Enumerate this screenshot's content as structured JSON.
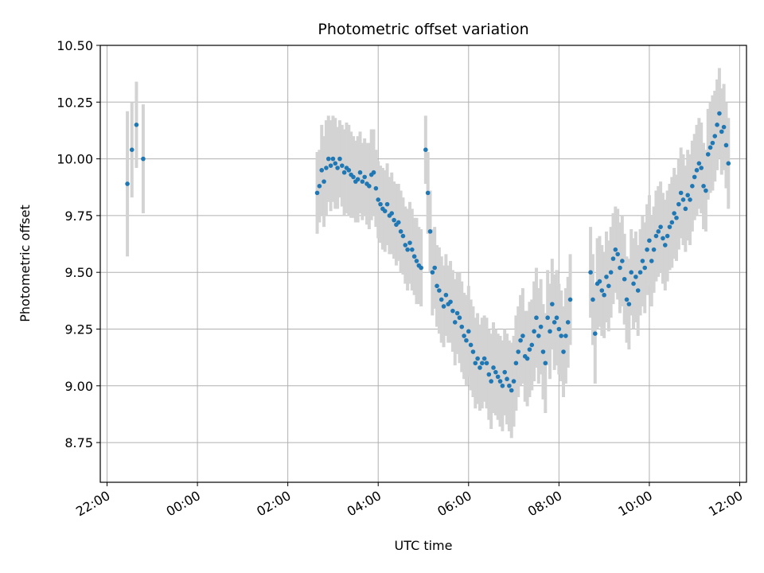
{
  "chart_data": {
    "type": "scatter",
    "title": "Photometric offset variation",
    "xlabel": "UTC time",
    "ylabel": "Photometric offset",
    "x_ticks": [
      "22:00",
      "00:00",
      "02:00",
      "04:00",
      "06:00",
      "08:00",
      "10:00",
      "12:00"
    ],
    "y_ticks": [
      "8.75",
      "9.00",
      "9.25",
      "9.50",
      "9.75",
      "10.00",
      "10.25",
      "10.50"
    ],
    "x_unit": "hours since 22:00 UTC",
    "xlim": [
      -0.15,
      14.15
    ],
    "ylim": [
      8.575,
      10.5
    ],
    "grid": true,
    "colors": {
      "points": "#1f77b4",
      "errorbars": "#d3d3d3",
      "grid": "#b0b0b0"
    },
    "series": [
      {
        "points": [
          {
            "x": 0.45,
            "y": 9.89,
            "e": 0.32
          },
          {
            "x": 0.55,
            "y": 10.04,
            "e": 0.21
          },
          {
            "x": 0.65,
            "y": 10.15,
            "e": 0.19
          },
          {
            "x": 0.8,
            "y": 10.0,
            "e": 0.24
          },
          {
            "x": 4.65,
            "y": 9.85,
            "e": 0.18
          },
          {
            "x": 4.7,
            "y": 9.88,
            "e": 0.16
          },
          {
            "x": 4.75,
            "y": 9.95,
            "e": 0.2
          },
          {
            "x": 4.8,
            "y": 9.9,
            "e": 0.2
          },
          {
            "x": 4.85,
            "y": 9.96,
            "e": 0.21
          },
          {
            "x": 4.9,
            "y": 10.0,
            "e": 0.19
          },
          {
            "x": 4.95,
            "y": 9.97,
            "e": 0.2
          },
          {
            "x": 5.0,
            "y": 10.0,
            "e": 0.19
          },
          {
            "x": 5.05,
            "y": 9.98,
            "e": 0.2
          },
          {
            "x": 5.1,
            "y": 9.96,
            "e": 0.18
          },
          {
            "x": 5.15,
            "y": 10.0,
            "e": 0.17
          },
          {
            "x": 5.2,
            "y": 9.97,
            "e": 0.18
          },
          {
            "x": 5.25,
            "y": 9.94,
            "e": 0.19
          },
          {
            "x": 5.3,
            "y": 9.96,
            "e": 0.2
          },
          {
            "x": 5.35,
            "y": 9.95,
            "e": 0.2
          },
          {
            "x": 5.4,
            "y": 9.93,
            "e": 0.19
          },
          {
            "x": 5.45,
            "y": 9.92,
            "e": 0.18
          },
          {
            "x": 5.5,
            "y": 9.9,
            "e": 0.18
          },
          {
            "x": 5.55,
            "y": 9.91,
            "e": 0.19
          },
          {
            "x": 5.6,
            "y": 9.94,
            "e": 0.18
          },
          {
            "x": 5.65,
            "y": 9.9,
            "e": 0.17
          },
          {
            "x": 5.7,
            "y": 9.92,
            "e": 0.17
          },
          {
            "x": 5.75,
            "y": 9.89,
            "e": 0.18
          },
          {
            "x": 5.8,
            "y": 9.88,
            "e": 0.19
          },
          {
            "x": 5.85,
            "y": 9.93,
            "e": 0.2
          },
          {
            "x": 5.9,
            "y": 9.94,
            "e": 0.19
          },
          {
            "x": 5.95,
            "y": 9.87,
            "e": 0.17
          },
          {
            "x": 6.0,
            "y": 9.82,
            "e": 0.17
          },
          {
            "x": 6.05,
            "y": 9.8,
            "e": 0.17
          },
          {
            "x": 6.1,
            "y": 9.78,
            "e": 0.18
          },
          {
            "x": 6.15,
            "y": 9.77,
            "e": 0.18
          },
          {
            "x": 6.2,
            "y": 9.8,
            "e": 0.18
          },
          {
            "x": 6.25,
            "y": 9.75,
            "e": 0.17
          },
          {
            "x": 6.3,
            "y": 9.76,
            "e": 0.18
          },
          {
            "x": 6.35,
            "y": 9.73,
            "e": 0.17
          },
          {
            "x": 6.4,
            "y": 9.71,
            "e": 0.18
          },
          {
            "x": 6.45,
            "y": 9.72,
            "e": 0.17
          },
          {
            "x": 6.5,
            "y": 9.68,
            "e": 0.18
          },
          {
            "x": 6.55,
            "y": 9.66,
            "e": 0.17
          },
          {
            "x": 6.6,
            "y": 9.62,
            "e": 0.17
          },
          {
            "x": 6.65,
            "y": 9.6,
            "e": 0.18
          },
          {
            "x": 6.7,
            "y": 9.63,
            "e": 0.18
          },
          {
            "x": 6.75,
            "y": 9.6,
            "e": 0.18
          },
          {
            "x": 6.8,
            "y": 9.57,
            "e": 0.17
          },
          {
            "x": 6.85,
            "y": 9.55,
            "e": 0.19
          },
          {
            "x": 6.9,
            "y": 9.53,
            "e": 0.17
          },
          {
            "x": 6.95,
            "y": 9.52,
            "e": 0.17
          },
          {
            "x": 7.05,
            "y": 10.04,
            "e": 0.15
          },
          {
            "x": 7.1,
            "y": 9.85,
            "e": 0.18
          },
          {
            "x": 7.15,
            "y": 9.68,
            "e": 0.18
          },
          {
            "x": 7.2,
            "y": 9.5,
            "e": 0.19
          },
          {
            "x": 7.25,
            "y": 9.52,
            "e": 0.18
          },
          {
            "x": 7.3,
            "y": 9.44,
            "e": 0.18
          },
          {
            "x": 7.35,
            "y": 9.42,
            "e": 0.19
          },
          {
            "x": 7.4,
            "y": 9.38,
            "e": 0.19
          },
          {
            "x": 7.45,
            "y": 9.35,
            "e": 0.18
          },
          {
            "x": 7.5,
            "y": 9.4,
            "e": 0.18
          },
          {
            "x": 7.55,
            "y": 9.36,
            "e": 0.17
          },
          {
            "x": 7.6,
            "y": 9.37,
            "e": 0.18
          },
          {
            "x": 7.65,
            "y": 9.33,
            "e": 0.18
          },
          {
            "x": 7.7,
            "y": 9.28,
            "e": 0.19
          },
          {
            "x": 7.75,
            "y": 9.32,
            "e": 0.18
          },
          {
            "x": 7.8,
            "y": 9.3,
            "e": 0.2
          },
          {
            "x": 7.85,
            "y": 9.26,
            "e": 0.2
          },
          {
            "x": 7.9,
            "y": 9.22,
            "e": 0.19
          },
          {
            "x": 7.95,
            "y": 9.2,
            "e": 0.2
          },
          {
            "x": 8.0,
            "y": 9.24,
            "e": 0.2
          },
          {
            "x": 8.05,
            "y": 9.18,
            "e": 0.2
          },
          {
            "x": 8.1,
            "y": 9.15,
            "e": 0.2
          },
          {
            "x": 8.15,
            "y": 9.1,
            "e": 0.2
          },
          {
            "x": 8.2,
            "y": 9.12,
            "e": 0.2
          },
          {
            "x": 8.25,
            "y": 9.08,
            "e": 0.19
          },
          {
            "x": 8.3,
            "y": 9.1,
            "e": 0.2
          },
          {
            "x": 8.35,
            "y": 9.12,
            "e": 0.19
          },
          {
            "x": 8.4,
            "y": 9.1,
            "e": 0.2
          },
          {
            "x": 8.45,
            "y": 9.05,
            "e": 0.2
          },
          {
            "x": 8.5,
            "y": 9.02,
            "e": 0.21
          },
          {
            "x": 8.55,
            "y": 9.08,
            "e": 0.2
          },
          {
            "x": 8.6,
            "y": 9.06,
            "e": 0.19
          },
          {
            "x": 8.65,
            "y": 9.04,
            "e": 0.19
          },
          {
            "x": 8.7,
            "y": 9.02,
            "e": 0.2
          },
          {
            "x": 8.75,
            "y": 9.0,
            "e": 0.2
          },
          {
            "x": 8.8,
            "y": 9.06,
            "e": 0.19
          },
          {
            "x": 8.85,
            "y": 9.03,
            "e": 0.2
          },
          {
            "x": 8.9,
            "y": 9.0,
            "e": 0.2
          },
          {
            "x": 8.95,
            "y": 8.98,
            "e": 0.21
          },
          {
            "x": 9.0,
            "y": 9.02,
            "e": 0.2
          },
          {
            "x": 9.05,
            "y": 9.1,
            "e": 0.21
          },
          {
            "x": 9.1,
            "y": 9.15,
            "e": 0.2
          },
          {
            "x": 9.15,
            "y": 9.2,
            "e": 0.2
          },
          {
            "x": 9.2,
            "y": 9.22,
            "e": 0.21
          },
          {
            "x": 9.25,
            "y": 9.13,
            "e": 0.2
          },
          {
            "x": 9.3,
            "y": 9.12,
            "e": 0.21
          },
          {
            "x": 9.35,
            "y": 9.16,
            "e": 0.21
          },
          {
            "x": 9.4,
            "y": 9.18,
            "e": 0.2
          },
          {
            "x": 9.45,
            "y": 9.24,
            "e": 0.22
          },
          {
            "x": 9.5,
            "y": 9.3,
            "e": 0.22
          },
          {
            "x": 9.55,
            "y": 9.22,
            "e": 0.21
          },
          {
            "x": 9.6,
            "y": 9.26,
            "e": 0.21
          },
          {
            "x": 9.65,
            "y": 9.15,
            "e": 0.21
          },
          {
            "x": 9.7,
            "y": 9.1,
            "e": 0.22
          },
          {
            "x": 9.75,
            "y": 9.3,
            "e": 0.21
          },
          {
            "x": 9.8,
            "y": 9.24,
            "e": 0.21
          },
          {
            "x": 9.85,
            "y": 9.36,
            "e": 0.2
          },
          {
            "x": 9.9,
            "y": 9.28,
            "e": 0.21
          },
          {
            "x": 9.95,
            "y": 9.3,
            "e": 0.21
          },
          {
            "x": 10.0,
            "y": 9.25,
            "e": 0.2
          },
          {
            "x": 10.05,
            "y": 9.22,
            "e": 0.2
          },
          {
            "x": 10.1,
            "y": 9.15,
            "e": 0.2
          },
          {
            "x": 10.15,
            "y": 9.22,
            "e": 0.21
          },
          {
            "x": 10.2,
            "y": 9.28,
            "e": 0.2
          },
          {
            "x": 10.25,
            "y": 9.38,
            "e": 0.2
          },
          {
            "x": 10.7,
            "y": 9.5,
            "e": 0.2
          },
          {
            "x": 10.75,
            "y": 9.38,
            "e": 0.2
          },
          {
            "x": 10.8,
            "y": 9.23,
            "e": 0.22
          },
          {
            "x": 10.85,
            "y": 9.45,
            "e": 0.2
          },
          {
            "x": 10.9,
            "y": 9.46,
            "e": 0.2
          },
          {
            "x": 10.95,
            "y": 9.42,
            "e": 0.2
          },
          {
            "x": 11.0,
            "y": 9.4,
            "e": 0.19
          },
          {
            "x": 11.05,
            "y": 9.48,
            "e": 0.2
          },
          {
            "x": 11.1,
            "y": 9.44,
            "e": 0.2
          },
          {
            "x": 11.15,
            "y": 9.5,
            "e": 0.2
          },
          {
            "x": 11.2,
            "y": 9.56,
            "e": 0.2
          },
          {
            "x": 11.25,
            "y": 9.6,
            "e": 0.19
          },
          {
            "x": 11.3,
            "y": 9.58,
            "e": 0.2
          },
          {
            "x": 11.35,
            "y": 9.52,
            "e": 0.2
          },
          {
            "x": 11.4,
            "y": 9.55,
            "e": 0.2
          },
          {
            "x": 11.45,
            "y": 9.47,
            "e": 0.2
          },
          {
            "x": 11.5,
            "y": 9.38,
            "e": 0.19
          },
          {
            "x": 11.55,
            "y": 9.36,
            "e": 0.2
          },
          {
            "x": 11.6,
            "y": 9.5,
            "e": 0.19
          },
          {
            "x": 11.65,
            "y": 9.45,
            "e": 0.2
          },
          {
            "x": 11.7,
            "y": 9.48,
            "e": 0.2
          },
          {
            "x": 11.75,
            "y": 9.42,
            "e": 0.2
          },
          {
            "x": 11.8,
            "y": 9.5,
            "e": 0.19
          },
          {
            "x": 11.85,
            "y": 9.55,
            "e": 0.2
          },
          {
            "x": 11.9,
            "y": 9.52,
            "e": 0.2
          },
          {
            "x": 11.95,
            "y": 9.6,
            "e": 0.2
          },
          {
            "x": 12.0,
            "y": 9.64,
            "e": 0.2
          },
          {
            "x": 12.05,
            "y": 9.55,
            "e": 0.2
          },
          {
            "x": 12.1,
            "y": 9.6,
            "e": 0.19
          },
          {
            "x": 12.15,
            "y": 9.66,
            "e": 0.2
          },
          {
            "x": 12.2,
            "y": 9.68,
            "e": 0.2
          },
          {
            "x": 12.25,
            "y": 9.7,
            "e": 0.2
          },
          {
            "x": 12.3,
            "y": 9.65,
            "e": 0.2
          },
          {
            "x": 12.35,
            "y": 9.62,
            "e": 0.2
          },
          {
            "x": 12.4,
            "y": 9.66,
            "e": 0.2
          },
          {
            "x": 12.45,
            "y": 9.7,
            "e": 0.19
          },
          {
            "x": 12.5,
            "y": 9.72,
            "e": 0.2
          },
          {
            "x": 12.55,
            "y": 9.76,
            "e": 0.2
          },
          {
            "x": 12.6,
            "y": 9.74,
            "e": 0.19
          },
          {
            "x": 12.65,
            "y": 9.8,
            "e": 0.2
          },
          {
            "x": 12.7,
            "y": 9.85,
            "e": 0.2
          },
          {
            "x": 12.75,
            "y": 9.82,
            "e": 0.2
          },
          {
            "x": 12.8,
            "y": 9.78,
            "e": 0.19
          },
          {
            "x": 12.85,
            "y": 9.84,
            "e": 0.2
          },
          {
            "x": 12.9,
            "y": 9.82,
            "e": 0.2
          },
          {
            "x": 12.95,
            "y": 9.88,
            "e": 0.2
          },
          {
            "x": 13.0,
            "y": 9.92,
            "e": 0.19
          },
          {
            "x": 13.05,
            "y": 9.95,
            "e": 0.2
          },
          {
            "x": 13.1,
            "y": 9.98,
            "e": 0.2
          },
          {
            "x": 13.15,
            "y": 9.96,
            "e": 0.2
          },
          {
            "x": 13.2,
            "y": 9.88,
            "e": 0.19
          },
          {
            "x": 13.25,
            "y": 9.86,
            "e": 0.18
          },
          {
            "x": 13.3,
            "y": 10.02,
            "e": 0.2
          },
          {
            "x": 13.35,
            "y": 10.05,
            "e": 0.2
          },
          {
            "x": 13.4,
            "y": 10.07,
            "e": 0.21
          },
          {
            "x": 13.45,
            "y": 10.1,
            "e": 0.2
          },
          {
            "x": 13.5,
            "y": 10.15,
            "e": 0.2
          },
          {
            "x": 13.55,
            "y": 10.2,
            "e": 0.2
          },
          {
            "x": 13.6,
            "y": 10.12,
            "e": 0.19
          },
          {
            "x": 13.65,
            "y": 10.14,
            "e": 0.19
          },
          {
            "x": 13.7,
            "y": 10.06,
            "e": 0.19
          },
          {
            "x": 13.75,
            "y": 9.98,
            "e": 0.2
          }
        ]
      }
    ]
  }
}
